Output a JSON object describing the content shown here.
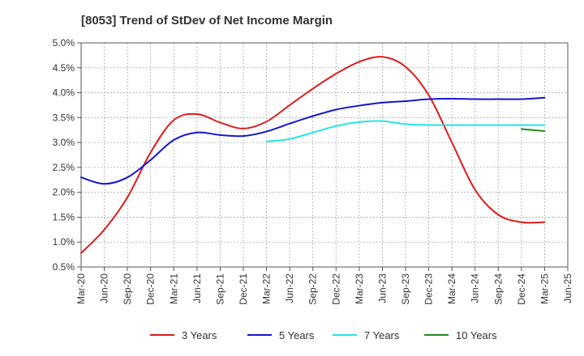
{
  "chart_data": {
    "type": "line",
    "title": "[8053]  Trend of StDev of Net Income Margin",
    "xlabel": "",
    "ylabel": "",
    "x_ticks": [
      "Mar-20",
      "Jun-20",
      "Sep-20",
      "Dec-20",
      "Mar-21",
      "Jun-21",
      "Sep-21",
      "Dec-21",
      "Mar-22",
      "Jun-22",
      "Sep-22",
      "Dec-22",
      "Mar-23",
      "Jun-23",
      "Sep-23",
      "Dec-23",
      "Mar-24",
      "Jun-24",
      "Sep-24",
      "Dec-24",
      "Mar-25",
      "Jun-25"
    ],
    "y_ticks": [
      "0.5%",
      "1.0%",
      "1.5%",
      "2.0%",
      "2.5%",
      "3.0%",
      "3.5%",
      "4.0%",
      "4.5%",
      "5.0%"
    ],
    "ylim": [
      0.5,
      5.0
    ],
    "grid": true,
    "legend_position": "bottom",
    "series": [
      {
        "name": "3 Years",
        "color": "#dd1c1c",
        "points": [
          [
            "Mar-20",
            0.78
          ],
          [
            "Jun-20",
            1.25
          ],
          [
            "Sep-20",
            1.9
          ],
          [
            "Dec-20",
            2.8
          ],
          [
            "Mar-21",
            3.45
          ],
          [
            "Jun-21",
            3.57
          ],
          [
            "Sep-21",
            3.4
          ],
          [
            "Dec-21",
            3.28
          ],
          [
            "Mar-22",
            3.42
          ],
          [
            "Jun-22",
            3.75
          ],
          [
            "Sep-22",
            4.08
          ],
          [
            "Dec-22",
            4.38
          ],
          [
            "Mar-23",
            4.62
          ],
          [
            "Jun-23",
            4.72
          ],
          [
            "Sep-23",
            4.52
          ],
          [
            "Dec-23",
            3.95
          ],
          [
            "Mar-24",
            3.0
          ],
          [
            "Jun-24",
            2.05
          ],
          [
            "Sep-24",
            1.55
          ],
          [
            "Dec-24",
            1.4
          ],
          [
            "Mar-25",
            1.4
          ]
        ]
      },
      {
        "name": "5 Years",
        "color": "#1515cc",
        "points": [
          [
            "Mar-20",
            2.3
          ],
          [
            "Jun-20",
            2.17
          ],
          [
            "Sep-20",
            2.3
          ],
          [
            "Dec-20",
            2.65
          ],
          [
            "Mar-21",
            3.05
          ],
          [
            "Jun-21",
            3.2
          ],
          [
            "Sep-21",
            3.15
          ],
          [
            "Dec-21",
            3.13
          ],
          [
            "Mar-22",
            3.22
          ],
          [
            "Jun-22",
            3.38
          ],
          [
            "Sep-22",
            3.53
          ],
          [
            "Dec-22",
            3.66
          ],
          [
            "Mar-23",
            3.74
          ],
          [
            "Jun-23",
            3.8
          ],
          [
            "Sep-23",
            3.83
          ],
          [
            "Dec-23",
            3.87
          ],
          [
            "Mar-24",
            3.88
          ],
          [
            "Jun-24",
            3.87
          ],
          [
            "Sep-24",
            3.87
          ],
          [
            "Dec-24",
            3.87
          ],
          [
            "Mar-25",
            3.9
          ]
        ]
      },
      {
        "name": "7 Years",
        "color": "#22e5e5",
        "points": [
          [
            "Mar-22",
            3.02
          ],
          [
            "Jun-22",
            3.07
          ],
          [
            "Sep-22",
            3.2
          ],
          [
            "Dec-22",
            3.33
          ],
          [
            "Mar-23",
            3.41
          ],
          [
            "Jun-23",
            3.43
          ],
          [
            "Sep-23",
            3.37
          ],
          [
            "Dec-23",
            3.35
          ],
          [
            "Mar-24",
            3.35
          ],
          [
            "Jun-24",
            3.35
          ],
          [
            "Sep-24",
            3.35
          ],
          [
            "Dec-24",
            3.35
          ],
          [
            "Mar-25",
            3.35
          ]
        ]
      },
      {
        "name": "10 Years",
        "color": "#1f8b1f",
        "points": [
          [
            "Dec-24",
            3.27
          ],
          [
            "Mar-25",
            3.23
          ]
        ]
      }
    ]
  }
}
